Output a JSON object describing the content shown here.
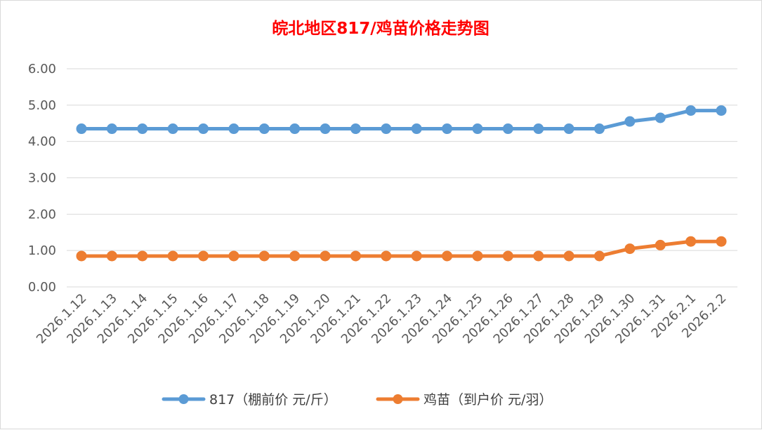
{
  "chart_data": {
    "type": "line",
    "title": "皖北地区817/鸡苗价格走势图",
    "title_color": "#ff0000",
    "categories": [
      "2026.1.12",
      "2026.1.13",
      "2026.1.14",
      "2026.1.15",
      "2026.1.16",
      "2026.1.17",
      "2026.1.18",
      "2026.1.19",
      "2026.1.20",
      "2026.1.21",
      "2026.1.22",
      "2026.1.23",
      "2026.1.24",
      "2026.1.25",
      "2026.1.26",
      "2026.1.27",
      "2026.1.28",
      "2026.1.29",
      "2026.1.30",
      "2026.1.31",
      "2026.2.1",
      "2026.2.2"
    ],
    "series": [
      {
        "name": "817（棚前价 元/斤）",
        "color": "#5b9bd5",
        "values": [
          4.35,
          4.35,
          4.35,
          4.35,
          4.35,
          4.35,
          4.35,
          4.35,
          4.35,
          4.35,
          4.35,
          4.35,
          4.35,
          4.35,
          4.35,
          4.35,
          4.35,
          4.35,
          4.55,
          4.65,
          4.85,
          4.85
        ]
      },
      {
        "name": "鸡苗（到户价 元/羽）",
        "color": "#ed7d31",
        "values": [
          0.85,
          0.85,
          0.85,
          0.85,
          0.85,
          0.85,
          0.85,
          0.85,
          0.85,
          0.85,
          0.85,
          0.85,
          0.85,
          0.85,
          0.85,
          0.85,
          0.85,
          0.85,
          1.05,
          1.15,
          1.25,
          1.25
        ]
      }
    ],
    "ylim": [
      0,
      6
    ],
    "yticks": [
      "0.00",
      "1.00",
      "2.00",
      "3.00",
      "4.00",
      "5.00",
      "6.00"
    ],
    "xlabel": "",
    "ylabel": "",
    "grid": true,
    "legend_position": "bottom",
    "marker": "circle"
  }
}
